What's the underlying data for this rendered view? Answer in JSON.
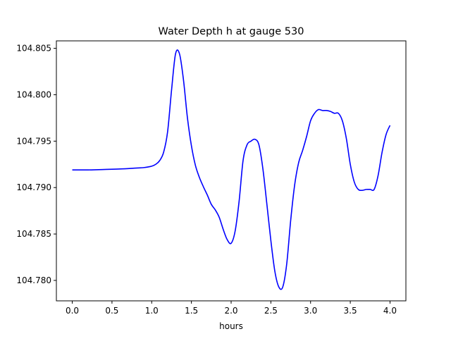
{
  "chart_data": {
    "type": "line",
    "title": "Water Depth h at gauge 530",
    "xlabel": "hours",
    "ylabel": "",
    "xlim": [
      -0.2,
      4.2
    ],
    "ylim": [
      104.7778,
      104.8058
    ],
    "xticks": [
      0.0,
      0.5,
      1.0,
      1.5,
      2.0,
      2.5,
      3.0,
      3.5,
      4.0
    ],
    "xtick_labels": [
      "0.0",
      "0.5",
      "1.0",
      "1.5",
      "2.0",
      "2.5",
      "3.0",
      "3.5",
      "4.0"
    ],
    "yticks": [
      104.78,
      104.785,
      104.79,
      104.795,
      104.8,
      104.805
    ],
    "ytick_labels": [
      "104.780",
      "104.785",
      "104.790",
      "104.795",
      "104.800",
      "104.805"
    ],
    "grid": false,
    "legend": "none",
    "series": [
      {
        "color": "#0000ff",
        "x": [
          0.0,
          0.2,
          0.4,
          0.6,
          0.8,
          0.9,
          1.0,
          1.05,
          1.1,
          1.15,
          1.2,
          1.25,
          1.3,
          1.35,
          1.4,
          1.45,
          1.5,
          1.55,
          1.6,
          1.65,
          1.7,
          1.75,
          1.8,
          1.85,
          1.9,
          1.95,
          2.0,
          2.05,
          2.1,
          2.15,
          2.2,
          2.25,
          2.3,
          2.35,
          2.4,
          2.45,
          2.5,
          2.55,
          2.6,
          2.65,
          2.7,
          2.75,
          2.8,
          2.85,
          2.9,
          2.95,
          3.0,
          3.05,
          3.1,
          3.15,
          3.2,
          3.25,
          3.3,
          3.35,
          3.4,
          3.45,
          3.5,
          3.55,
          3.6,
          3.65,
          3.7,
          3.75,
          3.8,
          3.85,
          3.9,
          3.95,
          4.0
        ],
        "y": [
          104.7919,
          104.7919,
          104.79195,
          104.792,
          104.7921,
          104.79215,
          104.7923,
          104.7925,
          104.7929,
          104.7938,
          104.796,
          104.8005,
          104.8044,
          104.8044,
          104.8016,
          104.7975,
          104.7945,
          104.7924,
          104.7911,
          104.7901,
          104.7892,
          104.7882,
          104.7876,
          104.7868,
          104.7855,
          104.7844,
          104.784,
          104.7853,
          104.7885,
          104.7929,
          104.7946,
          104.795,
          104.7952,
          104.7946,
          104.792,
          104.7882,
          104.7843,
          104.781,
          104.7793,
          104.7793,
          104.7818,
          104.7865,
          104.7903,
          104.7927,
          104.794,
          104.7955,
          104.7972,
          104.798,
          104.7984,
          104.7983,
          104.7983,
          104.7982,
          104.798,
          104.798,
          104.7972,
          104.7953,
          104.7925,
          104.7906,
          104.7898,
          104.7897,
          104.7898,
          104.7898,
          104.7898,
          104.7913,
          104.7938,
          104.7957,
          104.7967
        ]
      }
    ]
  }
}
